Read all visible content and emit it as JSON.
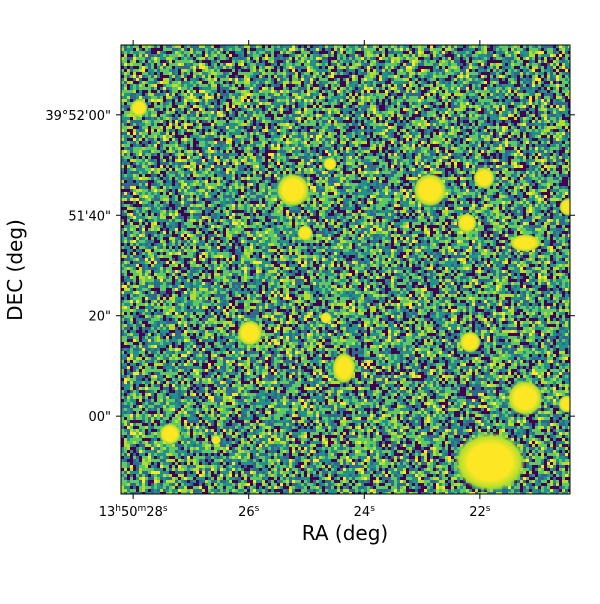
{
  "chart_data": {
    "type": "image",
    "x_label": "RA (deg)",
    "y_label": "DEC (deg)",
    "xlim": [
      28.21,
      20.44
    ],
    "xticks": [
      {
        "value": 28,
        "label": "13h50m28s"
      },
      {
        "value": 26,
        "label": "26s"
      },
      {
        "value": 24,
        "label": "24s"
      },
      {
        "value": 22,
        "label": "22s"
      }
    ],
    "ylim": [
      -15.5,
      73.9
    ],
    "yticks": [
      {
        "value": 60,
        "label": "39°52'00\""
      },
      {
        "value": 40,
        "label": "51'40\""
      },
      {
        "value": 20,
        "label": "20\""
      },
      {
        "value": 0,
        "label": "00\""
      }
    ]
  }
}
